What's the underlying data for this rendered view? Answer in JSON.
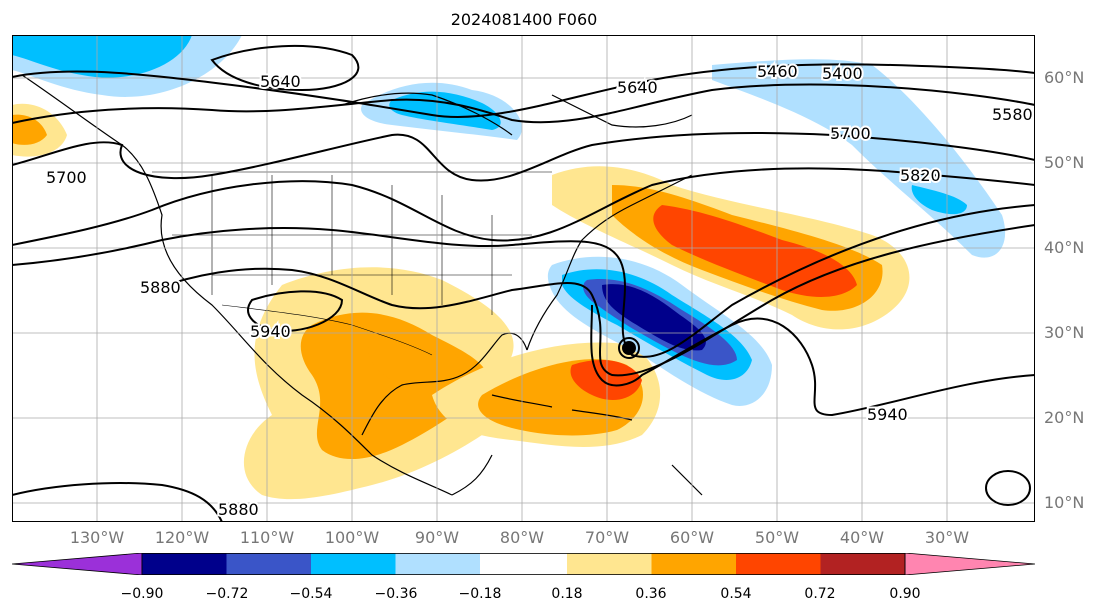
{
  "title": "2024081400 F060",
  "lat_labels": [
    "60°N",
    "50°N",
    "40°N",
    "30°N",
    "20°N",
    "10°N"
  ],
  "lon_labels": [
    "130°W",
    "120°W",
    "110°W",
    "100°W",
    "90°W",
    "80°W",
    "70°W",
    "60°W",
    "50°W",
    "40°W",
    "30°W"
  ],
  "contour_labels": [
    "5640",
    "5640",
    "5460",
    "5400",
    "5580",
    "5700",
    "5700",
    "5820",
    "5880",
    "5940",
    "5940",
    "5880"
  ],
  "colorbar": {
    "ticks": [
      "−0.90",
      "−0.72",
      "−0.54",
      "−0.36",
      "−0.18",
      "0.18",
      "0.36",
      "0.54",
      "0.72",
      "0.90"
    ],
    "colors": [
      "#9b30d9",
      "#00008b",
      "#3a55c8",
      "#00bfff",
      "#b0e0ff",
      "#ffffff",
      "#ffe690",
      "#ffa500",
      "#ff4500",
      "#b22222",
      "#ff85b0"
    ]
  }
}
